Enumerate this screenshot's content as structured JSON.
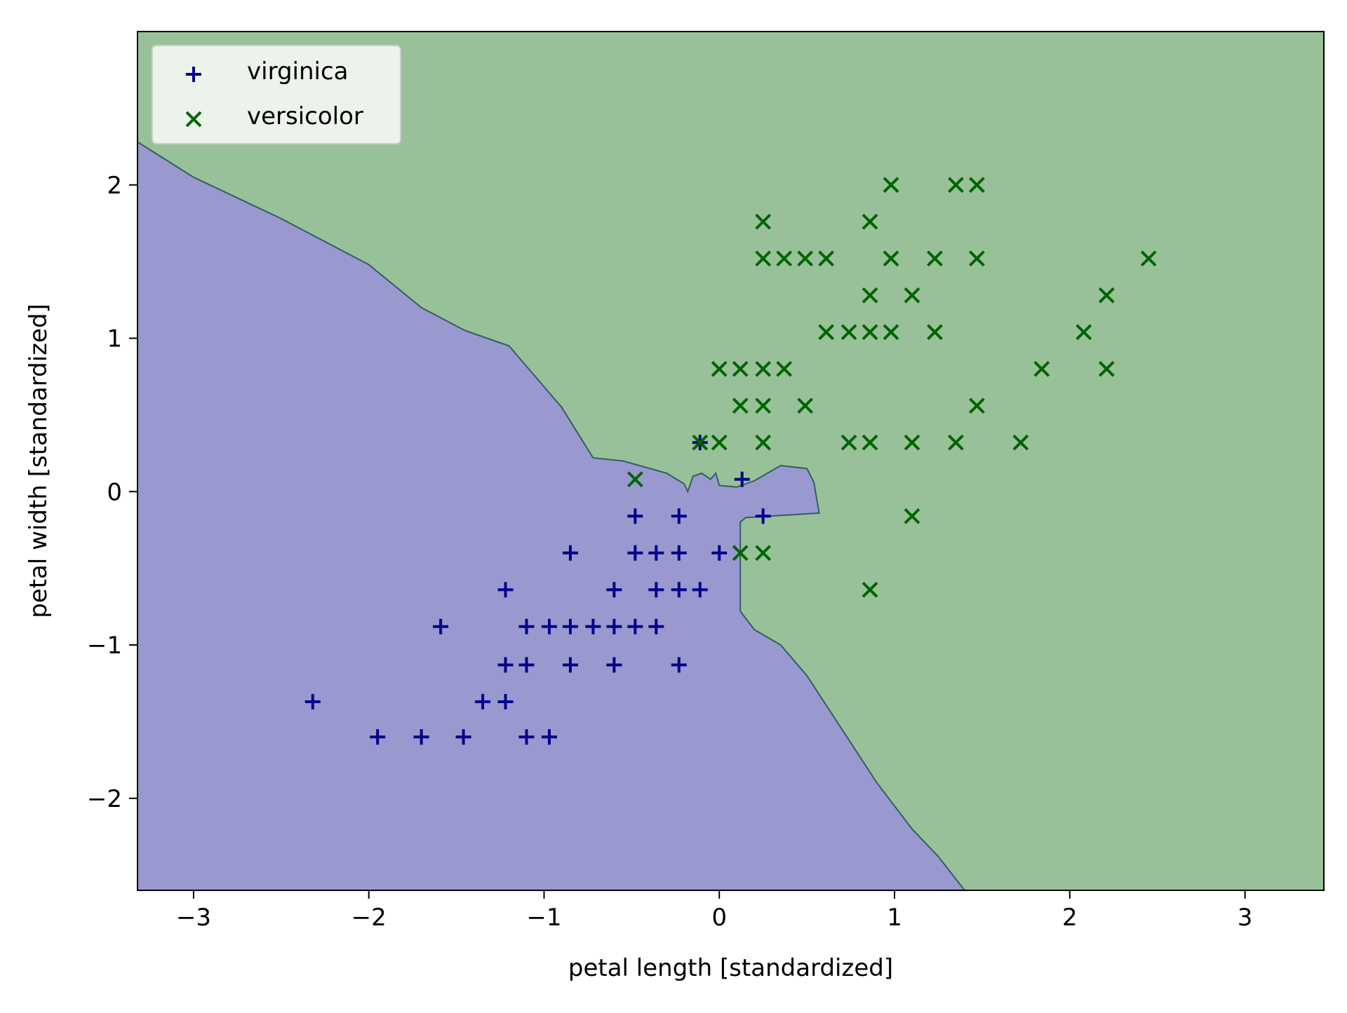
{
  "chart_data": {
    "type": "scatter",
    "title": "",
    "xlabel": "petal length [standardized]",
    "ylabel": "petal width [standardized]",
    "xlim": [
      -3.32,
      3.45
    ],
    "ylim": [
      -2.6,
      3.0
    ],
    "x_ticks": [
      -3,
      -2,
      -1,
      0,
      1,
      2,
      3
    ],
    "x_tick_labels": [
      "−3",
      "−2",
      "−1",
      "0",
      "1",
      "2",
      "3"
    ],
    "y_ticks": [
      -2,
      -1,
      0,
      1,
      2
    ],
    "y_tick_labels": [
      "−2",
      "−1",
      "0",
      "1",
      "2"
    ],
    "grid": false,
    "legend_position": "upper-left",
    "regions": [
      {
        "class": "virginica",
        "color": "#9999cf",
        "boundary": [
          [
            -3.32,
            2.28
          ],
          [
            -3.0,
            2.05
          ],
          [
            -2.5,
            1.78
          ],
          [
            -2.0,
            1.48
          ],
          [
            -1.7,
            1.2
          ],
          [
            -1.45,
            1.05
          ],
          [
            -1.2,
            0.95
          ],
          [
            -0.9,
            0.55
          ],
          [
            -0.72,
            0.22
          ],
          [
            -0.55,
            0.2
          ],
          [
            -0.3,
            0.12
          ],
          [
            -0.2,
            0.05
          ],
          [
            -0.18,
            0.0
          ],
          [
            -0.15,
            0.1
          ],
          [
            -0.1,
            0.12
          ],
          [
            -0.05,
            0.08
          ],
          [
            -0.02,
            0.12
          ],
          [
            0.0,
            0.04
          ],
          [
            0.1,
            0.03
          ],
          [
            0.2,
            0.07
          ],
          [
            0.35,
            0.17
          ],
          [
            0.5,
            0.15
          ],
          [
            0.54,
            0.06
          ],
          [
            0.57,
            -0.14
          ],
          [
            0.15,
            -0.17
          ],
          [
            0.12,
            -0.2
          ],
          [
            0.12,
            -0.78
          ],
          [
            0.2,
            -0.9
          ],
          [
            0.35,
            -1.0
          ],
          [
            0.5,
            -1.2
          ],
          [
            0.7,
            -1.55
          ],
          [
            0.9,
            -1.9
          ],
          [
            1.1,
            -2.2
          ],
          [
            1.25,
            -2.38
          ],
          [
            1.4,
            -2.6
          ],
          [
            -3.32,
            -2.6
          ]
        ]
      },
      {
        "class": "versicolor",
        "color": "#99c199"
      }
    ],
    "series": [
      {
        "name": "virginica",
        "marker": "+",
        "color": "#00008b",
        "points": [
          [
            -2.32,
            -1.37
          ],
          [
            -1.95,
            -1.6
          ],
          [
            -1.7,
            -1.6
          ],
          [
            -1.46,
            -1.6
          ],
          [
            -1.1,
            -1.6
          ],
          [
            -0.97,
            -1.6
          ],
          [
            -1.35,
            -1.37
          ],
          [
            -1.22,
            -1.37
          ],
          [
            -1.59,
            -0.88
          ],
          [
            -1.22,
            -1.13
          ],
          [
            -1.1,
            -1.13
          ],
          [
            -0.85,
            -1.13
          ],
          [
            -0.6,
            -1.13
          ],
          [
            -0.23,
            -1.13
          ],
          [
            -1.1,
            -0.88
          ],
          [
            -0.97,
            -0.88
          ],
          [
            -0.85,
            -0.88
          ],
          [
            -0.72,
            -0.88
          ],
          [
            -0.6,
            -0.88
          ],
          [
            -0.48,
            -0.88
          ],
          [
            -0.36,
            -0.88
          ],
          [
            -1.22,
            -0.64
          ],
          [
            -0.6,
            -0.64
          ],
          [
            -0.36,
            -0.64
          ],
          [
            -0.23,
            -0.64
          ],
          [
            -0.11,
            -0.64
          ],
          [
            -0.85,
            -0.4
          ],
          [
            -0.48,
            -0.4
          ],
          [
            -0.36,
            -0.4
          ],
          [
            -0.23,
            -0.4
          ],
          [
            0.0,
            -0.4
          ],
          [
            -0.48,
            -0.16
          ],
          [
            -0.23,
            -0.16
          ],
          [
            0.25,
            -0.16
          ],
          [
            0.13,
            0.08
          ],
          [
            -0.11,
            0.32
          ]
        ]
      },
      {
        "name": "versicolor",
        "marker": "x",
        "color": "#006400",
        "points": [
          [
            -0.48,
            0.08
          ],
          [
            0.12,
            -0.4
          ],
          [
            0.25,
            -0.4
          ],
          [
            0.86,
            -0.64
          ],
          [
            1.1,
            -0.16
          ],
          [
            -0.11,
            0.32
          ],
          [
            0.0,
            0.32
          ],
          [
            0.25,
            0.32
          ],
          [
            0.74,
            0.32
          ],
          [
            0.86,
            0.32
          ],
          [
            1.1,
            0.32
          ],
          [
            1.35,
            0.32
          ],
          [
            1.72,
            0.32
          ],
          [
            0.12,
            0.56
          ],
          [
            0.25,
            0.56
          ],
          [
            0.49,
            0.56
          ],
          [
            1.47,
            0.56
          ],
          [
            0.0,
            0.8
          ],
          [
            0.12,
            0.8
          ],
          [
            0.25,
            0.8
          ],
          [
            0.37,
            0.8
          ],
          [
            1.84,
            0.8
          ],
          [
            2.21,
            0.8
          ],
          [
            0.61,
            1.04
          ],
          [
            0.74,
            1.04
          ],
          [
            0.86,
            1.04
          ],
          [
            0.98,
            1.04
          ],
          [
            1.23,
            1.04
          ],
          [
            2.08,
            1.04
          ],
          [
            0.86,
            1.28
          ],
          [
            1.1,
            1.28
          ],
          [
            2.21,
            1.28
          ],
          [
            0.25,
            1.52
          ],
          [
            0.37,
            1.52
          ],
          [
            0.49,
            1.52
          ],
          [
            0.61,
            1.52
          ],
          [
            0.98,
            1.52
          ],
          [
            1.23,
            1.52
          ],
          [
            1.47,
            1.52
          ],
          [
            2.45,
            1.52
          ],
          [
            0.25,
            1.76
          ],
          [
            0.86,
            1.76
          ],
          [
            0.98,
            2.0
          ],
          [
            1.35,
            2.0
          ],
          [
            1.47,
            2.0
          ]
        ]
      }
    ]
  }
}
